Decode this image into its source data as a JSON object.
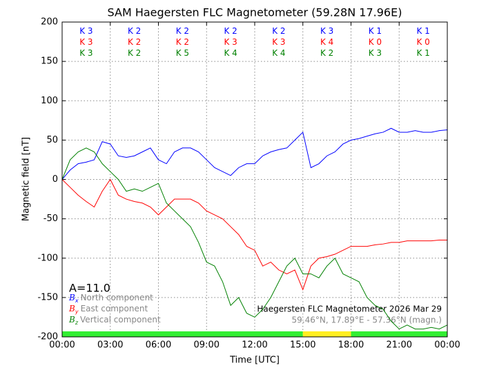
{
  "chart_data": {
    "type": "line",
    "title": "SAM Haegersten FLC Magnetometer (59.28N 17.96E)",
    "xlabel": "Time [UTC]",
    "ylabel": "Magnetic field [nT]",
    "xlim": [
      0,
      24
    ],
    "ylim": [
      -200,
      200
    ],
    "xticks": [
      {
        "value": 0,
        "label": "00:00"
      },
      {
        "value": 3,
        "label": "03:00"
      },
      {
        "value": 6,
        "label": "06:00"
      },
      {
        "value": 9,
        "label": "09:00"
      },
      {
        "value": 12,
        "label": "12:00"
      },
      {
        "value": 15,
        "label": "15:00"
      },
      {
        "value": 18,
        "label": "18:00"
      },
      {
        "value": 21,
        "label": "21:00"
      },
      {
        "value": 24,
        "label": "00:00"
      }
    ],
    "yticks": [
      200,
      150,
      100,
      50,
      0,
      -50,
      -100,
      -150,
      -200
    ],
    "grid": true,
    "x": [
      0,
      0.5,
      1,
      1.5,
      2,
      2.5,
      3,
      3.5,
      4,
      4.5,
      5,
      5.5,
      6,
      6.5,
      7,
      7.5,
      8,
      8.5,
      9,
      9.5,
      10,
      10.5,
      11,
      11.5,
      12,
      12.5,
      13,
      13.5,
      14,
      14.5,
      15,
      15.5,
      16,
      16.5,
      17,
      17.5,
      18,
      18.5,
      19,
      19.5,
      20,
      20.5,
      21,
      21.5,
      22,
      22.5,
      23,
      23.5,
      24
    ],
    "series": [
      {
        "name": "North component",
        "symbol": "B",
        "subscript": "x",
        "color": "#0000ff",
        "values": [
          0,
          12,
          20,
          22,
          25,
          48,
          45,
          30,
          28,
          30,
          35,
          40,
          25,
          20,
          35,
          40,
          40,
          35,
          25,
          15,
          10,
          5,
          15,
          20,
          20,
          30,
          35,
          38,
          40,
          50,
          60,
          15,
          20,
          30,
          35,
          45,
          50,
          52,
          55,
          58,
          60,
          65,
          60,
          60,
          62,
          60,
          60,
          62,
          63
        ],
        "k": [
          3,
          2,
          2,
          2,
          2,
          3,
          1,
          1
        ]
      },
      {
        "name": "East component",
        "symbol": "B",
        "subscript": "y",
        "color": "#ff0000",
        "values": [
          0,
          -10,
          -20,
          -28,
          -35,
          -15,
          0,
          -20,
          -25,
          -28,
          -30,
          -35,
          -45,
          -35,
          -25,
          -25,
          -25,
          -30,
          -40,
          -45,
          -50,
          -60,
          -70,
          -85,
          -90,
          -110,
          -105,
          -115,
          -120,
          -115,
          -140,
          -110,
          -100,
          -98,
          -95,
          -90,
          -85,
          -85,
          -85,
          -83,
          -82,
          -80,
          -80,
          -78,
          -78,
          -78,
          -78,
          -77,
          -77
        ],
        "k": [
          3,
          2,
          2,
          3,
          3,
          4,
          0,
          0
        ]
      },
      {
        "name": "Vertical component",
        "symbol": "B",
        "subscript": "z",
        "color": "#008000",
        "values": [
          0,
          25,
          35,
          40,
          35,
          20,
          10,
          0,
          -15,
          -12,
          -15,
          -10,
          -5,
          -30,
          -40,
          -50,
          -60,
          -80,
          -105,
          -110,
          -130,
          -160,
          -150,
          -170,
          -175,
          -165,
          -150,
          -130,
          -110,
          -100,
          -120,
          -120,
          -125,
          -110,
          -100,
          -120,
          -125,
          -130,
          -150,
          -160,
          -165,
          -180,
          -190,
          -185,
          -190,
          -190,
          -188,
          -190,
          -185
        ],
        "k": [
          3,
          2,
          5,
          4,
          4,
          2,
          3,
          1
        ]
      }
    ],
    "k_prefix": "K",
    "k_hours": [
      1.5,
      4.5,
      7.5,
      10.5,
      13.5,
      16.5,
      19.5,
      22.5
    ],
    "activity_label": "A=11.0",
    "annotations": [
      "Haegersten FLC Magnetometer 2026 Mar 29",
      "59.46°N, 17.89°E - 57.36°N (magn.)"
    ],
    "status_bar": [
      {
        "from": 0,
        "to": 15,
        "color": "#33ee33"
      },
      {
        "from": 15,
        "to": 18,
        "color": "#ffee22"
      },
      {
        "from": 18,
        "to": 24,
        "color": "#33ee33"
      }
    ]
  }
}
